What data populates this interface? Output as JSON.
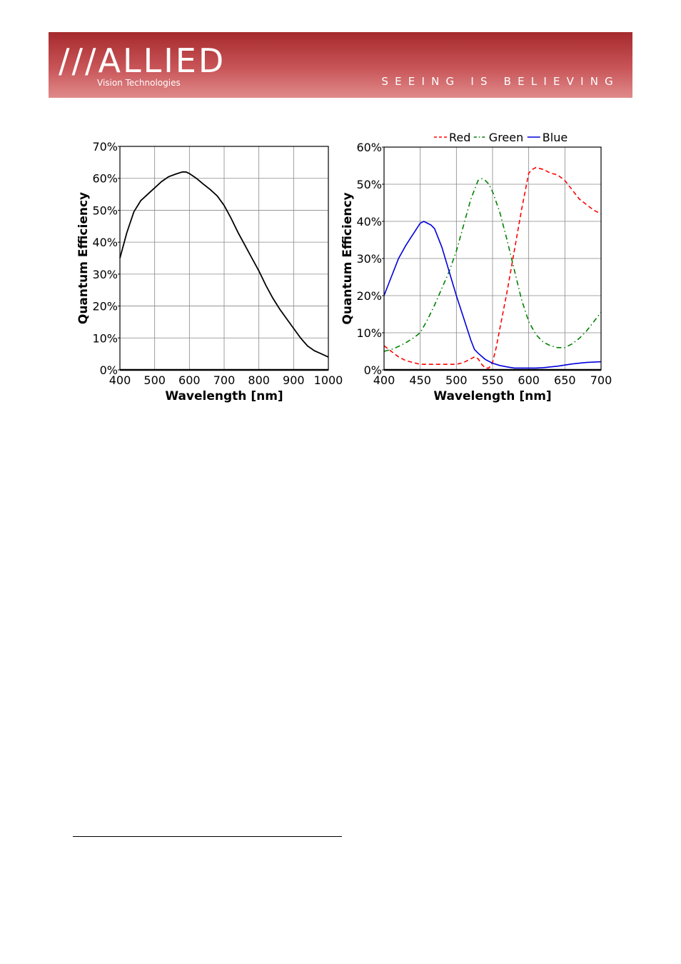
{
  "header": {
    "logo_main": "///ALLIED",
    "logo_sub": "Vision Technologies",
    "tagline": "SEEING IS BELIEVING",
    "colors": {
      "banner_top": "#a62a2d",
      "banner_bottom": "#e08a8b"
    }
  },
  "chart_data": [
    {
      "type": "line",
      "xlabel": "Wavelength [nm]",
      "ylabel": "Quantum Efficiency",
      "xlim": [
        400,
        1000
      ],
      "ylim": [
        0,
        70
      ],
      "x_ticks": [
        400,
        500,
        600,
        700,
        800,
        900,
        1000
      ],
      "y_ticks": [
        0,
        10,
        20,
        30,
        40,
        50,
        60,
        70
      ],
      "y_tick_labels": [
        "0%",
        "10%",
        "20%",
        "30%",
        "40%",
        "50%",
        "60%",
        "70%"
      ],
      "grid": true,
      "series": [
        {
          "color": "#000000",
          "x": [
            400,
            420,
            440,
            460,
            480,
            500,
            520,
            540,
            560,
            580,
            590,
            600,
            620,
            640,
            660,
            680,
            700,
            720,
            740,
            760,
            780,
            800,
            820,
            840,
            860,
            880,
            900,
            920,
            940,
            960,
            980,
            1000
          ],
          "y": [
            35,
            43,
            49.5,
            53,
            55,
            57,
            59,
            60.5,
            61.3,
            62,
            62,
            61.5,
            60,
            58.2,
            56.5,
            54.5,
            51.5,
            47.5,
            43,
            39,
            35,
            31,
            26.5,
            22.5,
            19,
            16,
            13,
            10,
            7.5,
            6,
            5,
            4
          ]
        }
      ]
    },
    {
      "type": "line",
      "xlabel": "Wavelength [nm]",
      "ylabel": "Quantum Efficiency",
      "xlim": [
        400,
        700
      ],
      "ylim": [
        0,
        60
      ],
      "x_ticks": [
        400,
        450,
        500,
        550,
        600,
        650,
        700
      ],
      "y_ticks": [
        0,
        10,
        20,
        30,
        40,
        50,
        60
      ],
      "y_tick_labels": [
        "0%",
        "10%",
        "20%",
        "30%",
        "40%",
        "50%",
        "60%"
      ],
      "grid": true,
      "legend_position": "top",
      "series": [
        {
          "name": "Red",
          "color": "#ff0000",
          "dash": "dashed",
          "x": [
            400,
            410,
            420,
            430,
            440,
            450,
            460,
            470,
            480,
            490,
            500,
            510,
            520,
            525,
            530,
            535,
            540,
            545,
            550,
            555,
            560,
            570,
            580,
            590,
            600,
            605,
            610,
            620,
            630,
            640,
            650,
            660,
            670,
            680,
            690,
            700
          ],
          "y": [
            6.5,
            5,
            3.5,
            2.5,
            2,
            1.5,
            1.5,
            1.5,
            1.5,
            1.5,
            1.5,
            2,
            3,
            3.5,
            3,
            1.5,
            0.5,
            0.5,
            2,
            6,
            11,
            21,
            32,
            43,
            53,
            54,
            54.5,
            54,
            53,
            52.5,
            51,
            48.5,
            46,
            44.5,
            43,
            42
          ]
        },
        {
          "name": "Green",
          "color": "#008000",
          "dash": "dash-dot",
          "x": [
            400,
            410,
            420,
            430,
            440,
            450,
            460,
            470,
            480,
            490,
            500,
            510,
            520,
            530,
            535,
            540,
            545,
            550,
            560,
            570,
            580,
            590,
            600,
            610,
            620,
            630,
            640,
            650,
            660,
            670,
            680,
            690,
            700
          ],
          "y": [
            5,
            5.5,
            6.3,
            7.3,
            8.5,
            10,
            13.5,
            17.5,
            22,
            26.5,
            32,
            39,
            46,
            51,
            51.5,
            51,
            50,
            48,
            42.5,
            35,
            27,
            19,
            13,
            9.5,
            7.5,
            6.5,
            6,
            6,
            7,
            8.5,
            10.5,
            13,
            15.5
          ]
        },
        {
          "name": "Blue",
          "color": "#0000dd",
          "dash": "solid",
          "x": [
            400,
            410,
            420,
            430,
            440,
            450,
            455,
            460,
            465,
            470,
            480,
            490,
            500,
            510,
            520,
            525,
            530,
            540,
            550,
            560,
            570,
            580,
            590,
            600,
            610,
            620,
            630,
            640,
            650,
            660,
            670,
            680,
            690,
            700
          ],
          "y": [
            20,
            25,
            30,
            33.5,
            36.5,
            39.5,
            40,
            39.5,
            39,
            38,
            33,
            26.5,
            20,
            14,
            8,
            5.5,
            4.5,
            2.8,
            1.8,
            1.2,
            0.8,
            0.5,
            0.5,
            0.5,
            0.5,
            0.6,
            0.8,
            1,
            1.3,
            1.6,
            1.8,
            2,
            2.1,
            2.2
          ]
        }
      ]
    }
  ]
}
